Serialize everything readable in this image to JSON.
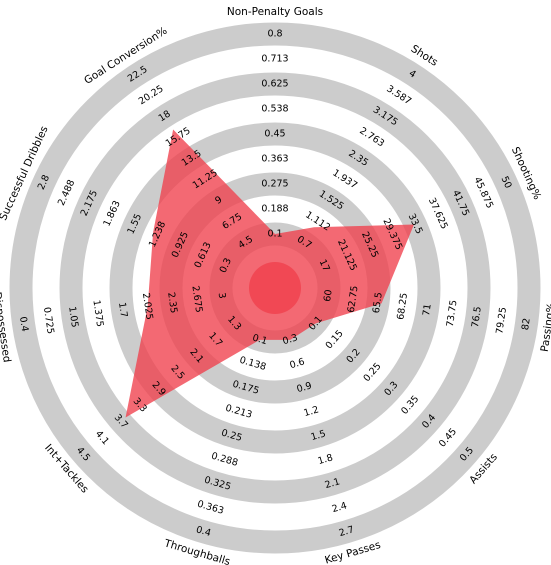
{
  "chart_data": {
    "type": "radar",
    "color": "#ef3f4b",
    "params": [
      {
        "name": "Non-Penalty Goals",
        "value": 0.1,
        "ticks": [
          0.1,
          0.188,
          0.275,
          0.363,
          0.45,
          0.538,
          0.625,
          0.713,
          0.8
        ]
      },
      {
        "name": "Shots",
        "value": 1.0,
        "ticks": [
          0.7,
          1.112,
          1.525,
          1.937,
          2.35,
          2.763,
          3.175,
          3.587,
          4
        ]
      },
      {
        "name": "Shooting%",
        "value": 33.3,
        "ticks": [
          17,
          21.125,
          25.25,
          29.375,
          33.5,
          37.625,
          41.75,
          45.875,
          50
        ]
      },
      {
        "name": "Passing%",
        "value": 65.9,
        "ticks": [
          60,
          62.75,
          65.5,
          68.25,
          71,
          73.75,
          76.5,
          79.25,
          82
        ]
      },
      {
        "name": "Assists",
        "value": 0.1,
        "ticks": [
          0.1,
          0.15,
          0.2,
          0.25,
          0.3,
          0.35,
          0.4,
          0.45,
          0.5
        ]
      },
      {
        "name": "Key Passes",
        "value": 0.3,
        "ticks": [
          0.3,
          0.6,
          0.9,
          1.2,
          1.5,
          1.8,
          2.1,
          2.4,
          2.7
        ]
      },
      {
        "name": "Throughballs",
        "value": 0.1,
        "ticks": [
          0.1,
          0.138,
          0.175,
          0.213,
          0.25,
          0.288,
          0.325,
          0.363,
          0.4
        ]
      },
      {
        "name": "Int+Tackles",
        "value": 3.6,
        "ticks": [
          1.3,
          1.7,
          2.1,
          2.5,
          2.9,
          3.3,
          3.7,
          4.1,
          4.5
        ]
      },
      {
        "name": "Dispossessed",
        "value": 2.03,
        "ticks": [
          3,
          2.675,
          2.35,
          2.025,
          1.7,
          1.375,
          1.05,
          0.725,
          0.4
        ]
      },
      {
        "name": "Successful Dribbles",
        "value": 1.3,
        "ticks": [
          0.3,
          0.613,
          0.925,
          1.238,
          1.55,
          1.863,
          2.175,
          2.488,
          2.8
        ]
      },
      {
        "name": "Goal Conversion%",
        "value": 16.6,
        "ticks": [
          4.5,
          6.75,
          9,
          11.25,
          13.5,
          15.75,
          18,
          20.25,
          22.5
        ]
      }
    ]
  }
}
